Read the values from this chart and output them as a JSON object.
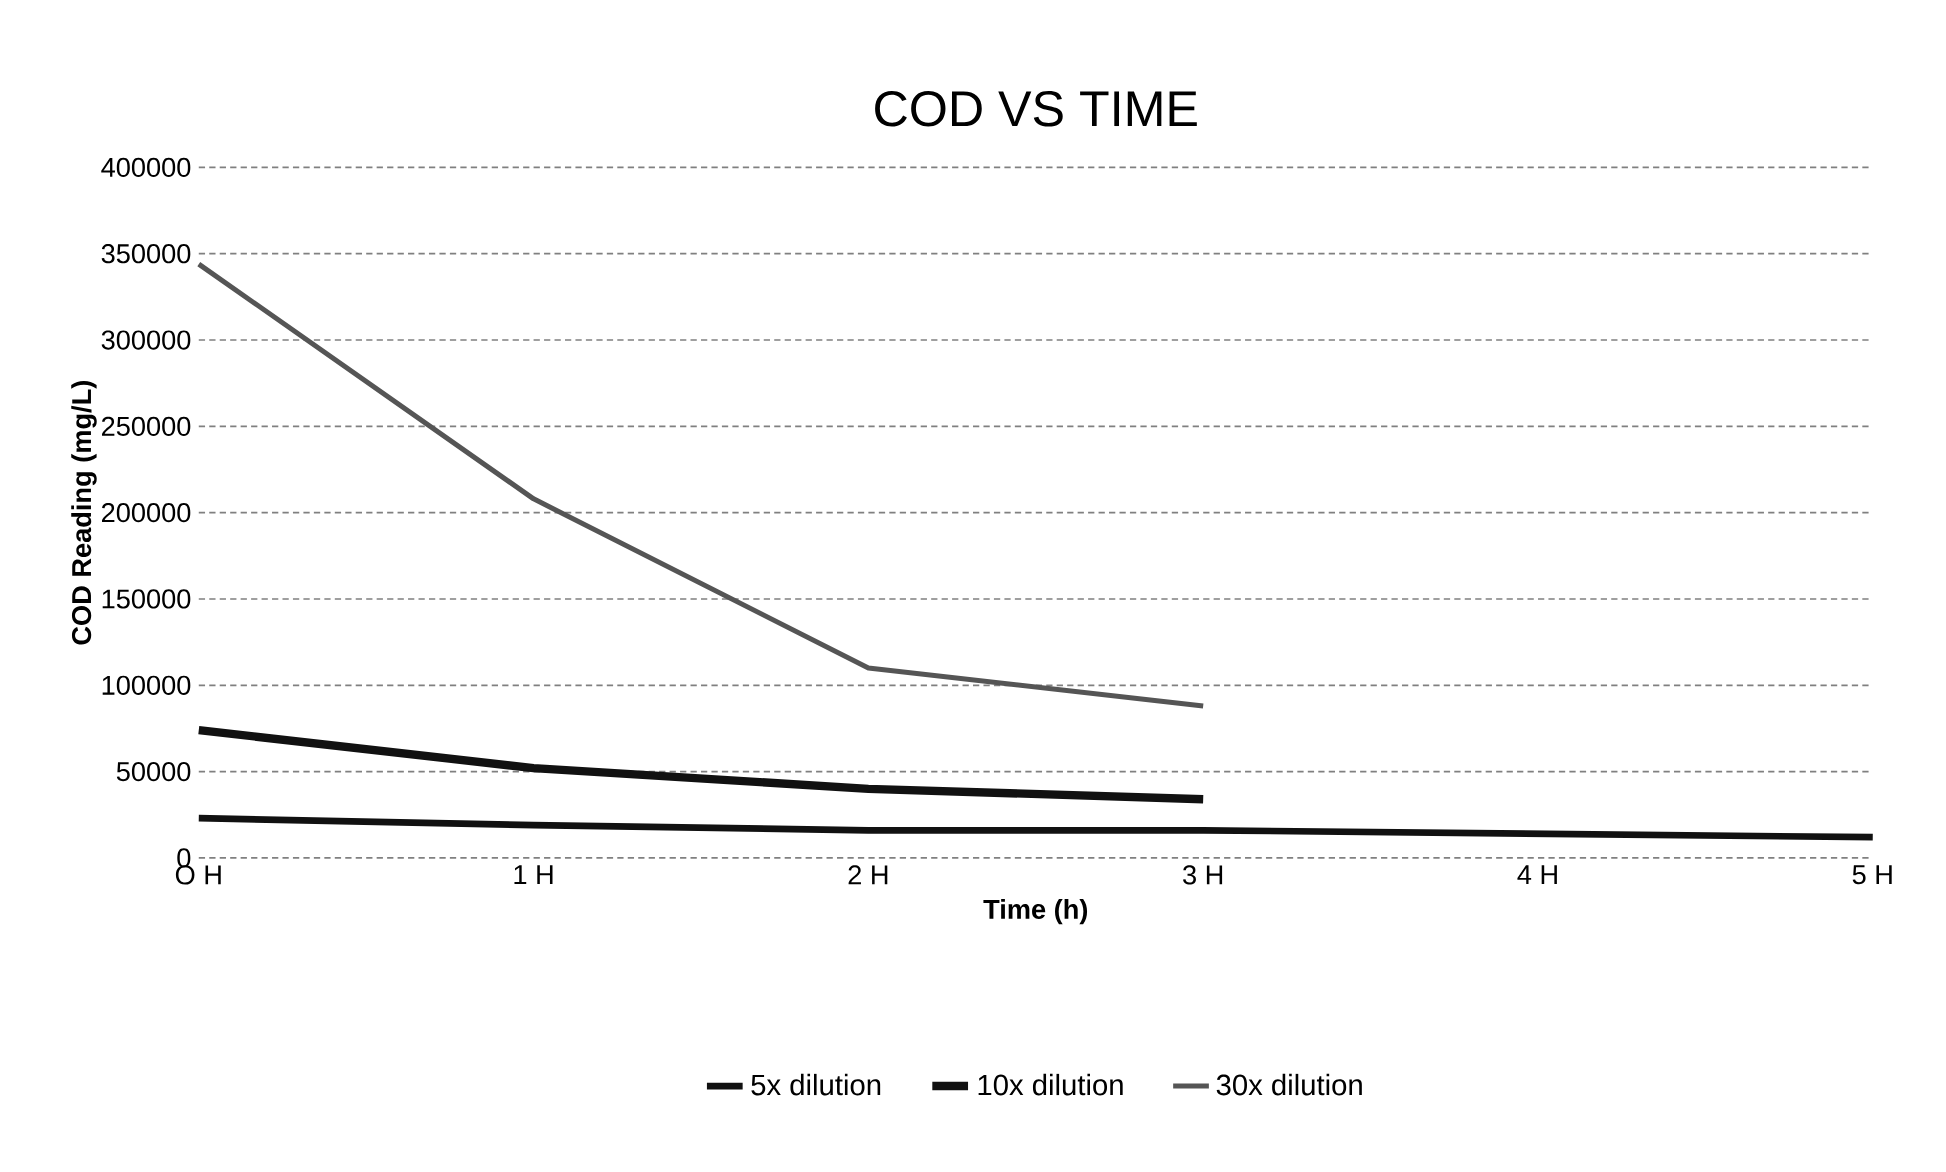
{
  "chart_data": {
    "type": "line",
    "title": "COD VS TIME",
    "xlabel": "Time (h)",
    "ylabel": "COD Reading (mg/L)",
    "categories": [
      "O H",
      "1 H",
      "2 H",
      "3 H",
      "4 H",
      "5 H"
    ],
    "series": [
      {
        "name": "5x dilution",
        "color": "#111111",
        "values": [
          23000,
          19000,
          16000,
          16000,
          14000,
          12000
        ]
      },
      {
        "name": "10x dilution",
        "color": "#111111",
        "values": [
          74000,
          52000,
          40000,
          34000,
          null,
          null
        ]
      },
      {
        "name": "30x dilution",
        "color": "#555555",
        "values": [
          344000,
          208000,
          110000,
          88000,
          null,
          null
        ]
      }
    ],
    "ylim": [
      0,
      400000
    ],
    "yticks": [
      0,
      50000,
      100000,
      150000,
      200000,
      250000,
      300000,
      350000,
      400000
    ],
    "grid": "y",
    "legend": "bottom",
    "marker": "none",
    "line_style": "solid"
  }
}
